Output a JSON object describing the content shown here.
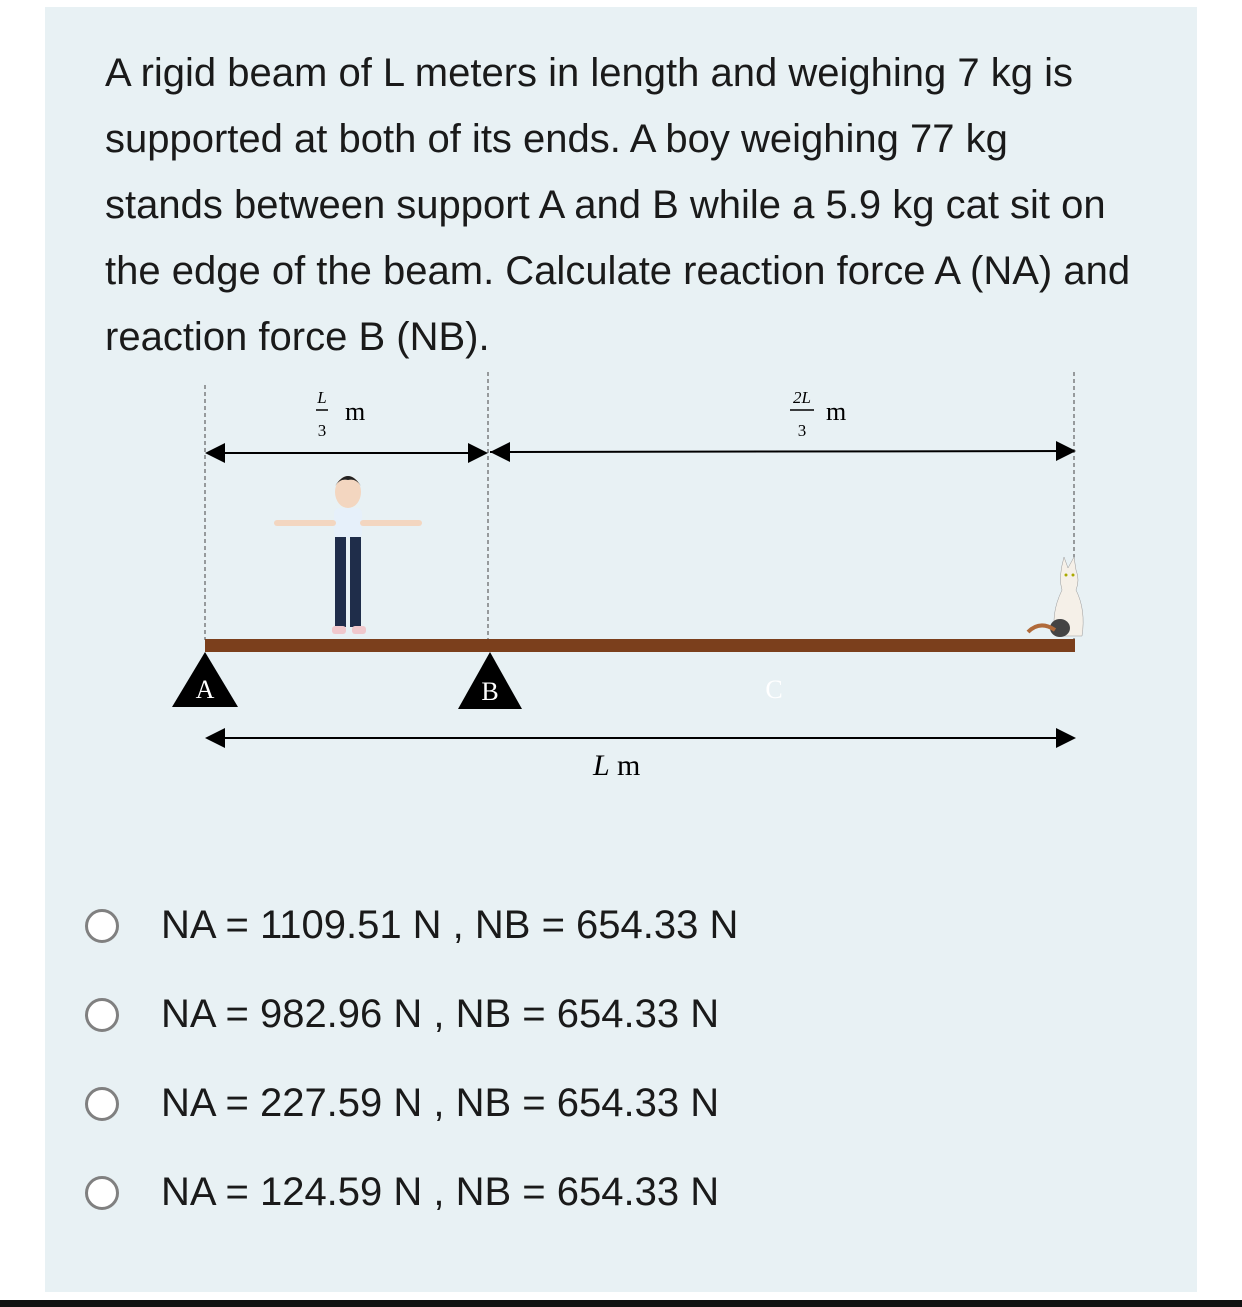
{
  "question": {
    "text": "A rigid beam of L meters in length and weighing 7 kg is supported at both of its ends. A boy weighing 77 kg stands between support A and B while a 5.9 kg cat sit on the edge of the beam. Calculate reaction force A (NA) and reaction force B (NB)."
  },
  "diagram": {
    "dim_left_num": "L",
    "dim_left_den": "3",
    "dim_right_num": "2L",
    "dim_right_den": "3",
    "unit": "m",
    "support_a": "A",
    "support_b": "B",
    "point_c": "C",
    "total_length_var": "L",
    "total_length_unit": "m",
    "beam_color": "#7b3f1c"
  },
  "options": [
    {
      "label": "NA = 1109.51 N , NB = 654.33 N"
    },
    {
      "label": "NA = 982.96 N , NB = 654.33 N"
    },
    {
      "label": "NA = 227.59 N , NB = 654.33 N"
    },
    {
      "label": "NA = 124.59 N , NB = 654.33 N"
    }
  ]
}
